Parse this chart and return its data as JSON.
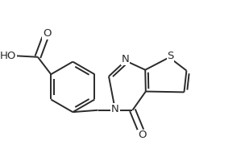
{
  "background_color": "#ffffff",
  "line_color": "#2a2a2a",
  "line_width": 1.4,
  "figsize": [
    3.04,
    1.8
  ],
  "dpi": 100,
  "font_size": 9.5,
  "xlim": [
    0.0,
    10.0
  ],
  "ylim": [
    0.0,
    6.0
  ]
}
